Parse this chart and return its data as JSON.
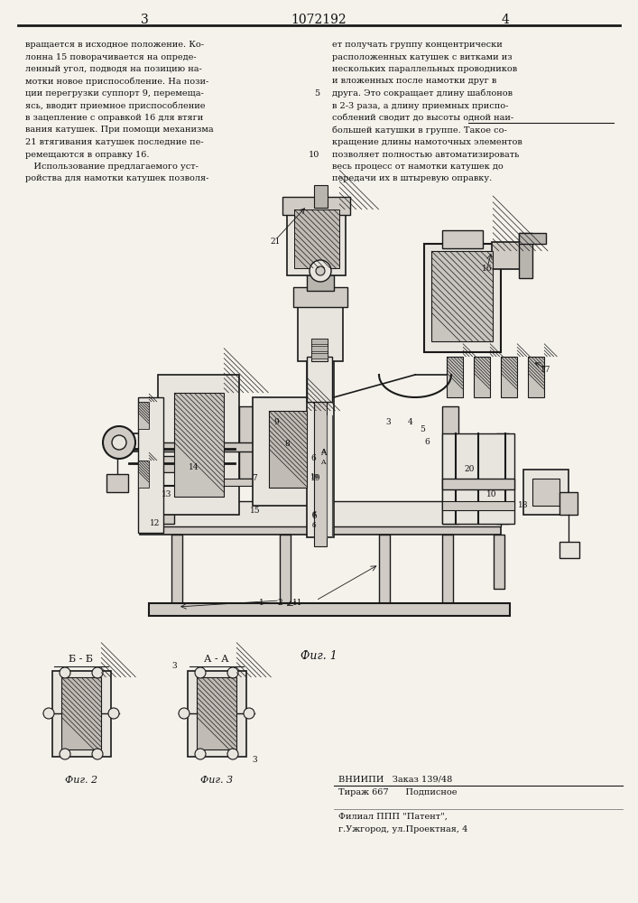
{
  "page_width": 7.07,
  "page_height": 10.0,
  "dpi": 100,
  "bg_color": "#f5f2ec",
  "header_line_color": "#222222",
  "page_num_left": "3",
  "page_num_center": "1072192",
  "page_num_right": "4",
  "text_col1": [
    "вращается в исходное положение. Ко-",
    "лонна 15 поворачивается на опреде-",
    "ленный угол, подводя на позицию на-",
    "мотки новое приспособление. На пози-",
    "ции перегрузки суппорт 9, перемеща-",
    "ясь, вводит приемное приспособление",
    "в зацепление с оправкой 16 для втяги",
    "вания катушек. При помощи механизма",
    "21 втягивания катушек последние пе-",
    "ремещаются в оправку 16.",
    "   Использование предлагаемого уст-",
    "ройства для намотки катушек позволя-"
  ],
  "text_col2": [
    "ет получать группу концентрически",
    "расположенных катушек с витками из",
    "нескольких параллельных проводников",
    "и вложенных после намотки друг в",
    "друга. Это сокращает длину шаблонов",
    "в 2-3 раза, а длину приемных приспо-",
    "соблений сводит до высоты одной наи-",
    "большей катушки в группе. Такое со-",
    "кращение длины намоточных элементов",
    "позволяет полностью автоматизировать",
    "весь процесс от намотки катушек до",
    "передачи их в штыревую оправку."
  ],
  "fig1_caption": "Фиг. 1",
  "fig2_caption": "Фиг. 2",
  "fig3_caption": "Фиг. 3",
  "section_bb": "Б - Б",
  "section_aa": "А - А",
  "footer_line1": "ВНИИПИ   Заказ 139/48",
  "footer_line2": "Тираж 667      Подписное",
  "footer_line3": "Филиал ППП \"Патент\",",
  "footer_line4": "г.Ужгород, ул.Проектная, 4",
  "draw_color": "#1a1a1a",
  "hatch_color": "#333333",
  "light_fill": "#e8e4de",
  "mid_fill": "#d0cbc4",
  "dark_fill": "#b8b4ae"
}
